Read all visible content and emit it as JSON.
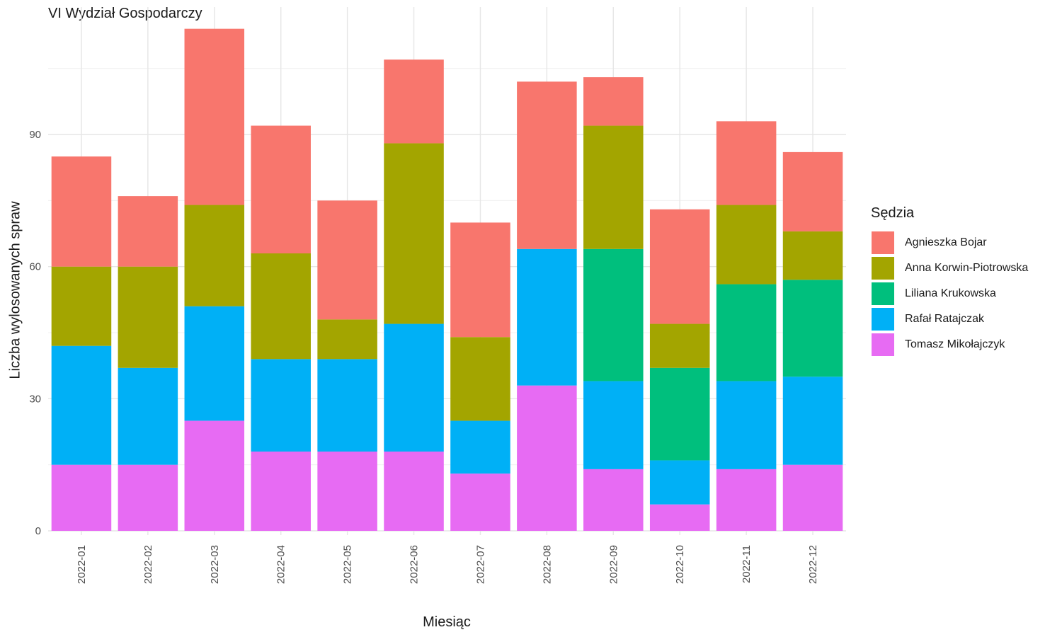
{
  "chart_data": {
    "type": "bar",
    "stacked": true,
    "title": "VI Wydział Gospodarczy",
    "xlabel": "Miesiąc",
    "ylabel": "Liczba wylosowanych spraw",
    "ylim": [
      0,
      118
    ],
    "yticks": [
      0,
      30,
      60,
      90
    ],
    "grid": true,
    "legend_title": "Sędzia",
    "legend_position": "right",
    "categories": [
      "2022-01",
      "2022-02",
      "2022-03",
      "2022-04",
      "2022-05",
      "2022-06",
      "2022-07",
      "2022-08",
      "2022-09",
      "2022-10",
      "2022-11",
      "2022-12"
    ],
    "series": [
      {
        "name": "Tomasz Mikołajczyk",
        "color": "#E76BF3",
        "values": [
          15,
          15,
          25,
          18,
          18,
          18,
          13,
          33,
          14,
          6,
          14,
          15
        ]
      },
      {
        "name": "Rafał Ratajczak",
        "color": "#00B0F6",
        "values": [
          27,
          22,
          26,
          21,
          21,
          29,
          12,
          31,
          20,
          10,
          20,
          20
        ]
      },
      {
        "name": "Liliana Krukowska",
        "color": "#00BF7D",
        "values": [
          0,
          0,
          0,
          0,
          0,
          0,
          0,
          0,
          30,
          21,
          22,
          22
        ]
      },
      {
        "name": "Anna Korwin-Piotrowska",
        "color": "#A3A500",
        "values": [
          18,
          23,
          23,
          24,
          9,
          41,
          19,
          0,
          28,
          10,
          18,
          11
        ]
      },
      {
        "name": "Agnieszka Bojar",
        "color": "#F8766D",
        "values": [
          25,
          16,
          40,
          29,
          27,
          19,
          26,
          38,
          11,
          26,
          19,
          18
        ]
      }
    ]
  }
}
